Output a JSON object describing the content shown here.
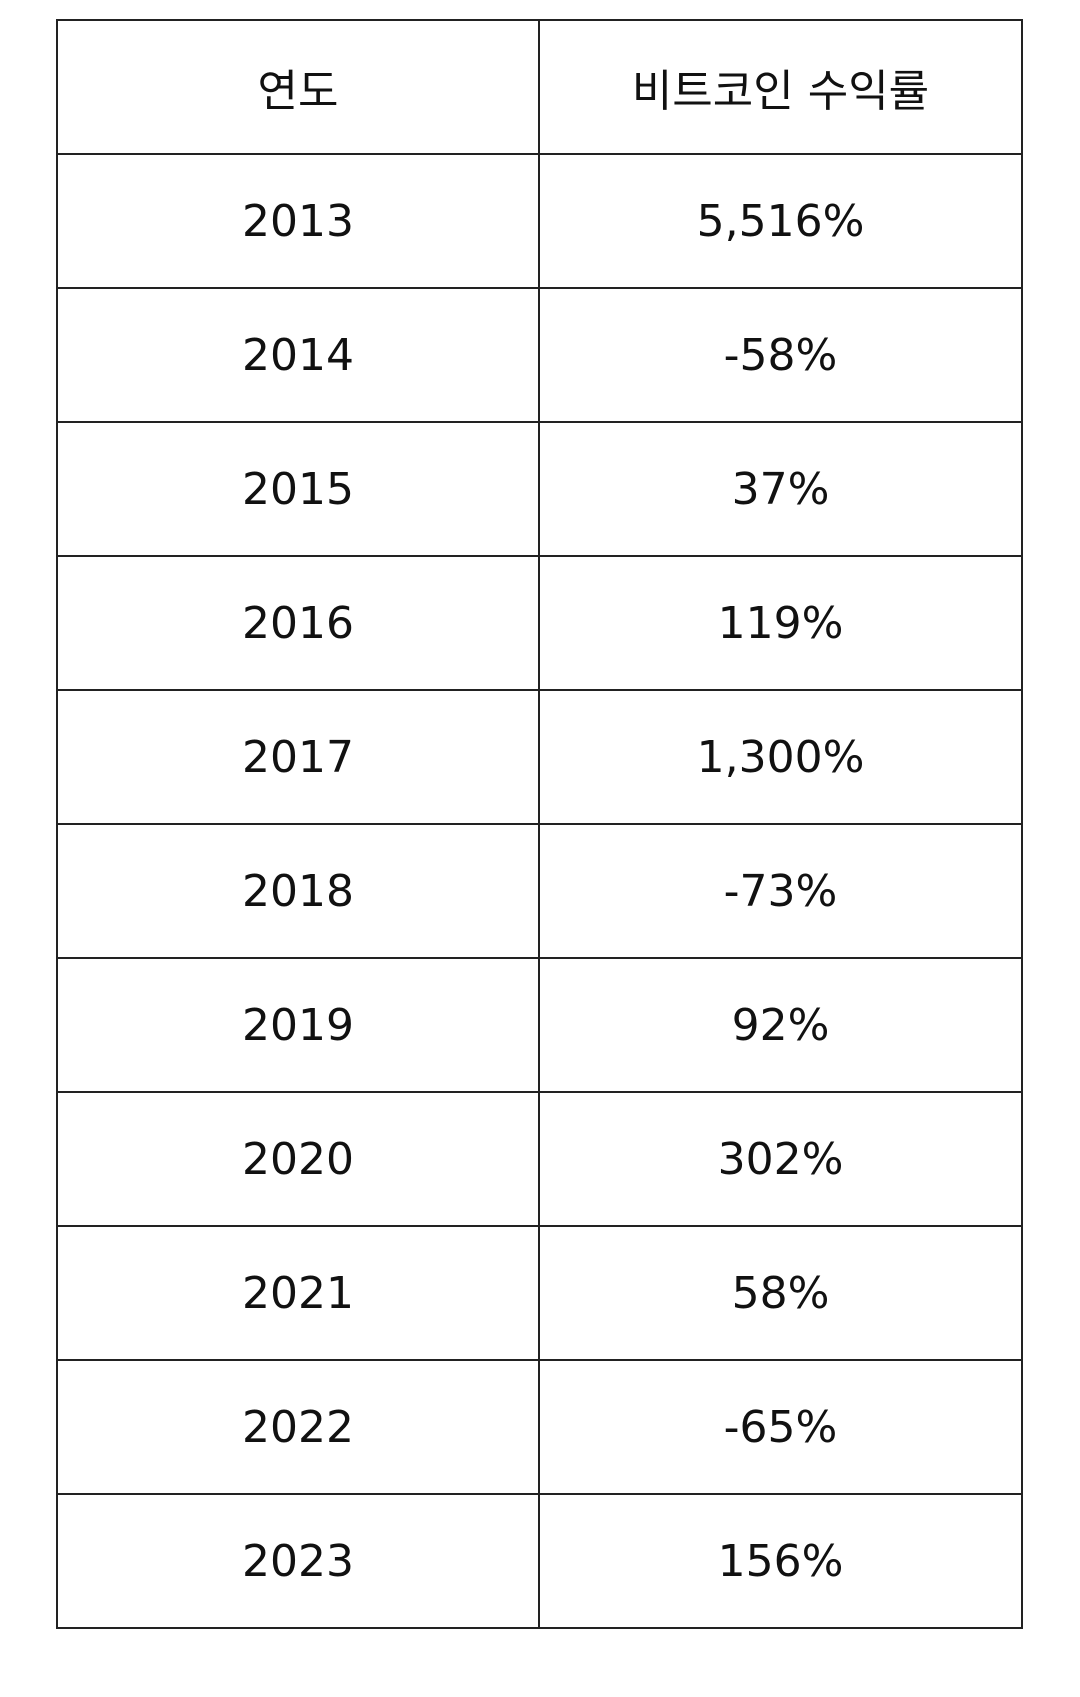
{
  "table": {
    "header": [
      "연도",
      "비트코인 수익률"
    ],
    "rows": [
      [
        "2013",
        "5,516%"
      ],
      [
        "2014",
        "-58%"
      ],
      [
        "2015",
        "37%"
      ],
      [
        "2016",
        "119%"
      ],
      [
        "2017",
        "1,300%"
      ],
      [
        "2018",
        "-73%"
      ],
      [
        "2019",
        "92%"
      ],
      [
        "2020",
        "302%"
      ],
      [
        "2021",
        "58%"
      ],
      [
        "2022",
        "-65%"
      ],
      [
        "2023",
        "156%"
      ]
    ]
  }
}
